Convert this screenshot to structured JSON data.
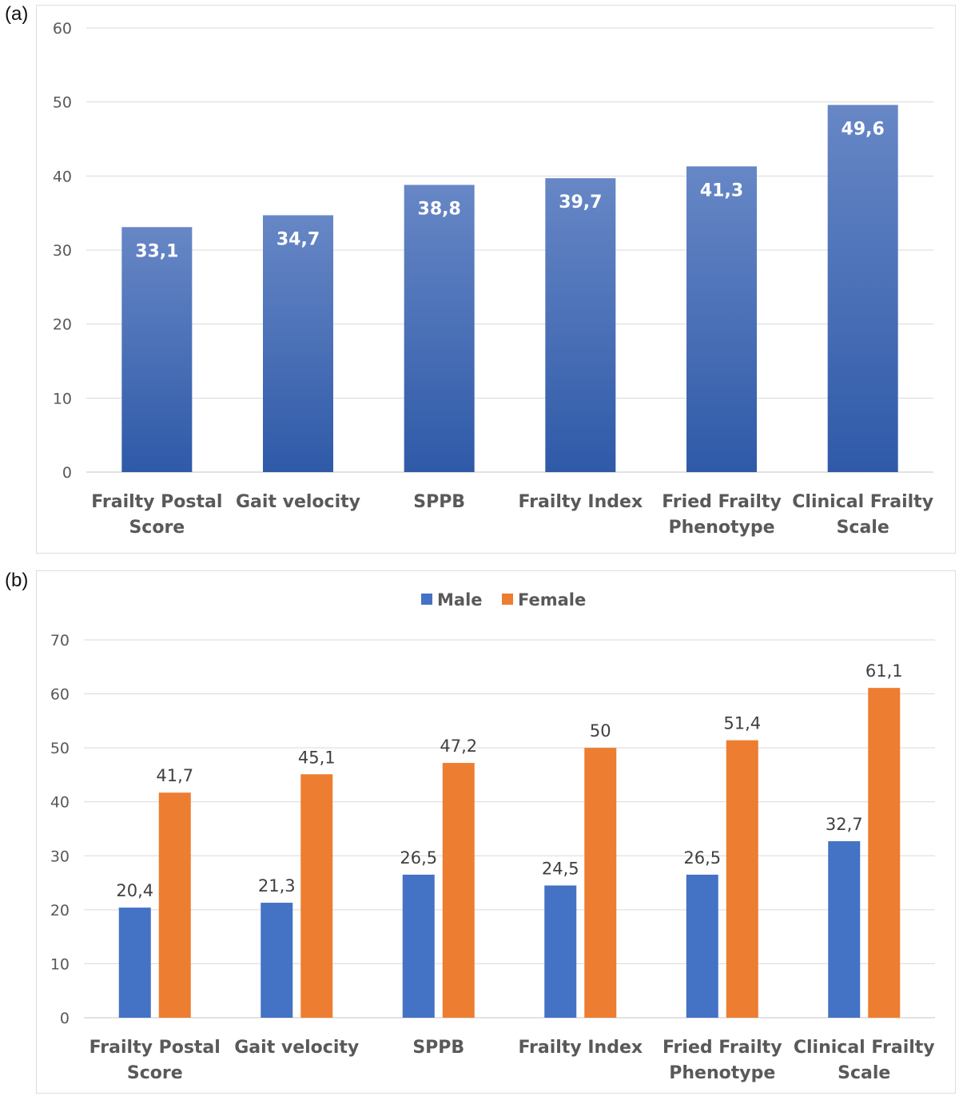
{
  "panels": {
    "a_label": "(a)",
    "b_label": "(b)"
  },
  "colors": {
    "bar_a_top": "#6787c6",
    "bar_a_bottom": "#2f5aa8",
    "male": "#4472c4",
    "female": "#ed7d31",
    "grid": "#d9d9d9"
  },
  "chart_data": [
    {
      "type": "bar",
      "panel": "(a)",
      "categories": [
        [
          "Frailty Postal",
          "Score"
        ],
        [
          "Gait velocity"
        ],
        [
          "SPPB"
        ],
        [
          "Frailty Index"
        ],
        [
          "Fried Frailty",
          "Phenotype"
        ],
        [
          "Clinical Frailty",
          "Scale"
        ]
      ],
      "values": [
        33.1,
        34.7,
        38.8,
        39.7,
        41.3,
        49.6
      ],
      "value_labels": [
        "33,1",
        "34,7",
        "38,8",
        "39,7",
        "41,3",
        "49,6"
      ],
      "ylim": [
        0,
        60
      ],
      "yticks": [
        0,
        10,
        20,
        30,
        40,
        50,
        60
      ],
      "title": "",
      "xlabel": "",
      "ylabel": "",
      "grid": true
    },
    {
      "type": "bar",
      "panel": "(b)",
      "categories": [
        [
          "Frailty Postal",
          "Score"
        ],
        [
          "Gait velocity"
        ],
        [
          "SPPB"
        ],
        [
          "Frailty Index"
        ],
        [
          "Fried Frailty",
          "Phenotype"
        ],
        [
          "Clinical Frailty",
          "Scale"
        ]
      ],
      "series": [
        {
          "name": "Male",
          "values": [
            20.4,
            21.3,
            26.5,
            24.5,
            26.5,
            32.7
          ],
          "value_labels": [
            "20,4",
            "21,3",
            "26,5",
            "24,5",
            "26,5",
            "32,7"
          ]
        },
        {
          "name": "Female",
          "values": [
            41.7,
            45.1,
            47.2,
            50,
            51.4,
            61.1
          ],
          "value_labels": [
            "41,7",
            "45,1",
            "47,2",
            "50",
            "51,4",
            "61,1"
          ]
        }
      ],
      "ylim": [
        0,
        70
      ],
      "yticks": [
        0,
        10,
        20,
        30,
        40,
        50,
        60,
        70
      ],
      "legend_position": "top-center",
      "title": "",
      "xlabel": "",
      "ylabel": "",
      "grid": true
    }
  ]
}
